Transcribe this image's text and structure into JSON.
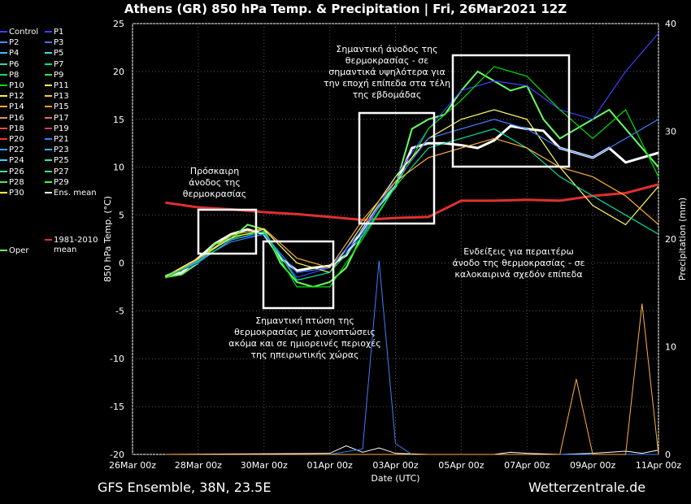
{
  "chart_data": {
    "type": "line",
    "title": "Athens  (GR)  850 hPa Temp. & Precipitation | Fri, 26Mar2021 12Z",
    "xlabel": "Date (UTC)",
    "ylabel": "850 hPa Temp. (°C)",
    "y2label": "Precipitation (mm)",
    "ylim": [
      -20,
      25
    ],
    "y2lim": [
      0,
      40
    ],
    "yticks": [
      "25",
      "20",
      "15",
      "10",
      "5",
      "0",
      "-5",
      "-10",
      "-15",
      "-20"
    ],
    "y2ticks": [
      "40",
      "30",
      "20",
      "10",
      "0"
    ],
    "xticks": [
      "26Mar 00z",
      "28Mar 00z",
      "30Mar 00z",
      "01Apr 00z",
      "03Apr 00z",
      "05Apr 00z",
      "07Apr 00z",
      "09Apr 00z",
      "11Apr 00z"
    ],
    "grid": true,
    "series": [
      {
        "name": "Ens. mean",
        "color": "#ffffff",
        "x": [
          1,
          1.5,
          2,
          2.5,
          3,
          3.5,
          4,
          4.5,
          5,
          5.5,
          6,
          6.5,
          7,
          7.5,
          8,
          8.5,
          9,
          9.5,
          10,
          10.5,
          11,
          11.5,
          12,
          12.5,
          13,
          13.5,
          14,
          14.5,
          15,
          15.5,
          16
        ],
        "y": [
          -1.4,
          -1.0,
          0.5,
          2.0,
          3.0,
          3.5,
          3.0,
          0.5,
          -0.8,
          -0.5,
          -0.3,
          0.8,
          3.5,
          6.0,
          8.0,
          12.0,
          12.5,
          12.5,
          12.3,
          12.0,
          12.8,
          14.3,
          14.0,
          13.8,
          12.0,
          11.5,
          11.0,
          12.0,
          10.5,
          11.0,
          11.5
        ]
      },
      {
        "name": "1981-2010 mean",
        "color": "#e03030",
        "x": [
          1,
          2,
          3,
          4,
          5,
          6,
          7,
          8,
          9,
          10,
          11,
          12,
          13,
          14,
          15,
          16
        ],
        "y": [
          6.3,
          5.8,
          5.6,
          5.3,
          5.1,
          4.8,
          4.5,
          4.7,
          4.8,
          6.5,
          6.5,
          6.6,
          6.5,
          7.0,
          7.3,
          8.2
        ]
      },
      {
        "name": "Oper",
        "color": "#66ff66",
        "x": [
          1,
          1.5,
          2,
          2.5,
          3,
          3.5,
          4,
          4.5,
          5,
          5.5,
          6,
          6.5,
          7,
          7.5,
          8,
          8.5,
          9,
          9.5,
          10,
          10.5,
          11,
          11.5,
          12,
          12.5,
          13,
          13.5,
          14,
          14.5,
          15,
          15.5,
          16
        ],
        "y": [
          -1.5,
          -1.2,
          0.0,
          2.0,
          2.5,
          4.0,
          3.5,
          0.0,
          -2.0,
          -2.5,
          -2.0,
          -0.5,
          3.0,
          6.0,
          8.0,
          14.0,
          15.0,
          15.5,
          18.0,
          20.0,
          19.0,
          18.0,
          18.5,
          15.0,
          13.0,
          14.0,
          15.0,
          16.0,
          14.0,
          12.0,
          10.0
        ]
      },
      {
        "name": "Control",
        "color": "#3f3fff",
        "x": [
          1,
          2,
          3,
          4,
          5,
          6,
          7,
          8,
          9,
          10,
          11,
          12,
          13,
          14,
          15,
          16
        ],
        "y": [
          -1.5,
          0.0,
          2.5,
          3.0,
          -1.5,
          -0.5,
          3.0,
          9.0,
          14.0,
          18.0,
          19.0,
          18.5,
          16.0,
          15.0,
          20.0,
          24.0
        ]
      },
      {
        "name": "P10",
        "color": "#00e000",
        "x": [
          1,
          2,
          3,
          4,
          5,
          6,
          7,
          8,
          9,
          10,
          11,
          12,
          13,
          14,
          15,
          16
        ],
        "y": [
          -1.6,
          0.2,
          2.8,
          3.2,
          -2.5,
          -2.5,
          2.5,
          8.0,
          14.0,
          17.0,
          20.5,
          19.5,
          16.0,
          13.0,
          16.0,
          9.0
        ]
      },
      {
        "name": "P11",
        "color": "#ffff66",
        "x": [
          1,
          2,
          3,
          4,
          5,
          6,
          7,
          8,
          9,
          10,
          11,
          12,
          13,
          14,
          15,
          16
        ],
        "y": [
          -1.4,
          0.5,
          2.6,
          3.5,
          0.0,
          -1.0,
          4.0,
          9.0,
          13.0,
          15.0,
          16.0,
          15.0,
          10.0,
          6.0,
          4.0,
          8.0
        ]
      },
      {
        "name": "P21",
        "color": "#3f7fff",
        "x": [
          1,
          2,
          3,
          4,
          5,
          6,
          7,
          8,
          9,
          10,
          11,
          12,
          13,
          14,
          15,
          16
        ],
        "y": [
          -1.5,
          0.3,
          2.2,
          3.0,
          -1.0,
          -0.5,
          3.5,
          8.5,
          13.0,
          14.0,
          15.0,
          14.0,
          12.0,
          11.0,
          13.0,
          15.0
        ]
      },
      {
        "name": "P7",
        "color": "#00e0a0",
        "x": [
          1,
          2,
          3,
          4,
          5,
          6,
          7,
          8,
          9,
          10,
          11,
          12,
          13,
          14,
          15,
          16
        ],
        "y": [
          -1.3,
          0.1,
          2.4,
          3.3,
          -1.8,
          -1.0,
          2.8,
          8.0,
          12.0,
          13.0,
          14.0,
          12.0,
          9.0,
          7.0,
          5.0,
          3.0
        ]
      },
      {
        "name": "P15",
        "color": "#ffb040",
        "x": [
          1,
          2,
          3,
          4,
          5,
          6,
          7,
          8,
          9,
          10,
          11,
          12,
          13,
          14,
          15,
          16
        ],
        "y": [
          -1.5,
          0.4,
          2.9,
          3.6,
          0.5,
          -0.5,
          4.5,
          8.5,
          11.0,
          12.0,
          13.0,
          12.0,
          10.0,
          9.0,
          7.0,
          4.0
        ]
      }
    ],
    "precip_series": [
      {
        "name": "Ens. mean",
        "color": "#ffffff",
        "x": [
          1,
          6,
          6.5,
          7,
          7.5,
          8,
          9,
          10,
          11,
          11.5,
          12,
          13,
          14,
          15,
          15.5,
          16
        ],
        "y": [
          0,
          0.1,
          0.8,
          0.2,
          0.6,
          0.1,
          0,
          0,
          0,
          0.2,
          0.1,
          0,
          0.1,
          0.3,
          0.1,
          0.4
        ]
      },
      {
        "name": "P21",
        "color": "#3f7fff",
        "x": [
          1,
          6,
          7,
          7.5,
          8,
          8.5,
          9,
          16
        ],
        "y": [
          0,
          0,
          0.5,
          18,
          1,
          0,
          0,
          0
        ]
      },
      {
        "name": "P15",
        "color": "#ffb040",
        "x": [
          1,
          13,
          13.5,
          14,
          15,
          15.5,
          16
        ],
        "y": [
          0,
          0,
          7,
          0,
          0,
          14,
          0
        ]
      }
    ]
  },
  "legend": {
    "items": [
      {
        "name": "Control",
        "color": "#3f3fff"
      },
      {
        "name": "P1",
        "color": "#3f3fff"
      },
      {
        "name": "P2",
        "color": "#4f8fff"
      },
      {
        "name": "P3",
        "color": "#4f6fff"
      },
      {
        "name": "P4",
        "color": "#3fbfff"
      },
      {
        "name": "P5",
        "color": "#3fdfdf"
      },
      {
        "name": "P6",
        "color": "#3fd0a0"
      },
      {
        "name": "P7",
        "color": "#00e0a0"
      },
      {
        "name": "P8",
        "color": "#00e060"
      },
      {
        "name": "P9",
        "color": "#40e040"
      },
      {
        "name": "P10",
        "color": "#00e000"
      },
      {
        "name": "P11",
        "color": "#ffff66"
      },
      {
        "name": "P12",
        "color": "#ffee55"
      },
      {
        "name": "P13",
        "color": "#ffcc33"
      },
      {
        "name": "P14",
        "color": "#ffb040"
      },
      {
        "name": "P15",
        "color": "#ffa030"
      },
      {
        "name": "P16",
        "color": "#e09070"
      },
      {
        "name": "P17",
        "color": "#e07050"
      },
      {
        "name": "P18",
        "color": "#e05050"
      },
      {
        "name": "P19",
        "color": "#d04040"
      },
      {
        "name": "P20",
        "color": "#ff3030"
      },
      {
        "name": "P21",
        "color": "#3f7fff"
      },
      {
        "name": "P22",
        "color": "#3f9fff"
      },
      {
        "name": "P23",
        "color": "#3fafff"
      },
      {
        "name": "P24",
        "color": "#3fcfff"
      },
      {
        "name": "P25",
        "color": "#3fdfc0"
      },
      {
        "name": "P26",
        "color": "#3fe0a0"
      },
      {
        "name": "P27",
        "color": "#3fe080"
      },
      {
        "name": "P28",
        "color": "#60e060"
      },
      {
        "name": "P29",
        "color": "#40ff40"
      },
      {
        "name": "P30",
        "color": "#ffff40"
      },
      {
        "name": "Ens. mean",
        "color": "#ffffff"
      },
      {
        "name": "Oper",
        "color": "#66ff66"
      },
      {
        "name": "1981-2010\nmean",
        "color": "#e03030"
      }
    ]
  },
  "annotations": {
    "a1": "Πρόσκαιρη\nάνοδος της\nθερμοκρασίας",
    "a2": "Σημαντική πτώση της\nθερμοκρασίας με χιονοπτώσεις\nακόμα και σε ημιορεινές περιοχές\nτης ηπειρωτικής χώρας",
    "a3": "Σημαντική άνοδος της\nθερμοκρασίας - σε\nσημαντικά υψηλότερα για\nτην εποχή επίπεδα στα τέλη\nτης εβδομάδας",
    "a4": "Ενδείξεις για περαιτέρω\nάνοδο της θερμοκρασίας - σε\nκαλοκαιρινά σχεδόν επίπεδα"
  },
  "footer": {
    "left": "GFS Ensemble, 38N, 23.5E",
    "right": "Wetterzentrale.de"
  }
}
